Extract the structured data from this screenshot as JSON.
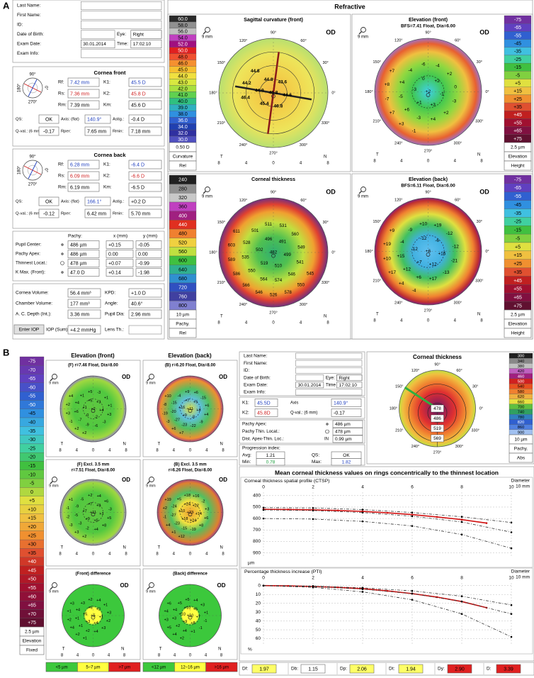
{
  "panel_a": {
    "label": "A",
    "patient": {
      "fields": [
        "Last Name:",
        "First Name:",
        "ID:",
        "Date of Birth:",
        "Exam Date:",
        "Exam Info:"
      ],
      "eye_label": "Eye:",
      "eye": "Right",
      "exam_date": "30.01.2014",
      "time_label": "Time:",
      "time": "17:02:10"
    },
    "orientation": [
      "90°",
      "0°",
      "270°",
      "180°"
    ],
    "cornea_front": {
      "title": "Cornea front",
      "rows": [
        [
          "Rf:",
          "7.42 mm",
          "K1:",
          "45.5 D"
        ],
        [
          "Rs:",
          "7.36 mm",
          "K2:",
          "45.8 D"
        ],
        [
          "Rm:",
          "7.39 mm",
          "Km:",
          "45.6 D"
        ]
      ],
      "rows6": [
        [
          "QS:",
          "OK",
          "Axis: (flat)",
          "140.9°",
          "Astig.:",
          "-0.4 D"
        ],
        [
          "Q-val.: (6 mm)",
          "-0.17",
          "Rper:",
          "7.65 mm",
          "Rmin:",
          "7.18 mm"
        ]
      ]
    },
    "cornea_back": {
      "title": "Cornea back",
      "rows": [
        [
          "Rf:",
          "6.28 mm",
          "K1:",
          "-6.4 D"
        ],
        [
          "Rs:",
          "6.09 mm",
          "K2:",
          "-6.6 D"
        ],
        [
          "Rm:",
          "6.19 mm",
          "Km:",
          "-6.5 D"
        ]
      ],
      "rows6": [
        [
          "QS:",
          "OK",
          "Axis: (flat)",
          "166.1°",
          "Astig.:",
          "+0.2 D"
        ],
        [
          "Q-val.: (6 mm)",
          "-0.12",
          "Rper:",
          "6.42 mm",
          "Rmin:",
          "5.70 mm"
        ]
      ]
    },
    "pachy": {
      "headers": [
        "Pachy:",
        "x (mm)",
        "y (mm)"
      ],
      "rows": [
        [
          "Pupil Center:",
          "486 µm",
          "+0.15",
          "-0.05"
        ],
        [
          "Pachy Apex:",
          "486 µm",
          "0.00",
          "0.00"
        ],
        [
          "Thinnest Locat.:",
          "478 µm",
          "+0.07",
          "-0.99"
        ],
        [
          "K Max. (Front):",
          "47.0 D",
          "+0.14",
          "-1.98"
        ]
      ]
    },
    "volumes": {
      "rows": [
        [
          "Cornea Volume:",
          "56.4 mm³",
          "KPD:",
          "+1.0 D"
        ],
        [
          "Chamber Volume:",
          "177 mm³",
          "Angle:",
          "40.6°"
        ],
        [
          "A. C. Depth (Int.):",
          "3.36 mm",
          "Pupil Dia:",
          "2.96 mm"
        ]
      ],
      "button": "Enter IOP",
      "iop_label": "IOP (Sum):",
      "iop": "+4.2 mmHg",
      "lens_label": "Lens Th.:"
    },
    "refractive": {
      "title": "Refractive",
      "angles": [
        "90°",
        "60°",
        "30°",
        "0°",
        "330°",
        "300°",
        "270°",
        "240°",
        "210°",
        "180°",
        "150°",
        "120°"
      ],
      "xticks": [
        "8",
        "4",
        "0",
        "4",
        "8"
      ],
      "t": "T",
      "n": "N",
      "zoom": "9 mm",
      "eye": "OD",
      "maps": [
        {
          "title": "Sagittal curvature (front)",
          "numbers": [
            "45.8",
            "44.8",
            "44.9",
            "45.4",
            "46.8",
            "44.6",
            "43.6",
            "44.8",
            "44.2",
            "46.4"
          ],
          "scale": {
            "values": [
              "60.0",
              "58.0",
              "56.0",
              "54.0",
              "52.0",
              "50.0",
              "48.0",
              "46.0",
              "45.0",
              "44.0",
              "43.0",
              "42.0",
              "41.0",
              "40.0",
              "39.0",
              "38.0",
              "36.0",
              "34.0",
              "32.0",
              "30.0"
            ],
            "labels": [
              "0.50 D",
              "Curvature",
              "Rel"
            ]
          }
        },
        {
          "title": "Elevation (front)",
          "subtitle": [
            "BFS=7.41 Float, Dia=6.00"
          ],
          "numbers": [
            "+2",
            "0",
            "-3",
            "+1",
            "+3",
            "-1",
            "+2",
            "-4",
            "+4",
            "-5",
            "+6",
            "-3",
            "+4",
            "+2",
            "-3",
            "0",
            "+2",
            "-4",
            "-6",
            "+7",
            "+8",
            "-7",
            "+7",
            "+3",
            "-1"
          ],
          "scale": {
            "values": [
              "-75",
              "-65",
              "-55",
              "-45",
              "-35",
              "-25",
              "-15",
              "-5",
              "+5",
              "+15",
              "+25",
              "+35",
              "+45",
              "+55",
              "+65",
              "+75"
            ],
            "labels": [
              "2.5 µm",
              "Elevation",
              "Height"
            ]
          }
        },
        {
          "title": "Corneal thickness",
          "numbers": [
            "482",
            "496",
            "502",
            "519",
            "510",
            "499",
            "491",
            "501",
            "528",
            "535",
            "550",
            "564",
            "574",
            "546",
            "541",
            "549",
            "560",
            "531",
            "511",
            "611",
            "603",
            "589",
            "586",
            "566",
            "546",
            "526",
            "578",
            "550",
            "545"
          ],
          "scale": {
            "values": [
              "240",
              "280",
              "320",
              "360",
              "400",
              "440",
              "480",
              "520",
              "560",
              "600",
              "640",
              "680",
              "720",
              "760",
              "800"
            ],
            "labels": [
              "10 µm",
              "Pachy.",
              "Rel"
            ]
          }
        },
        {
          "title": "Elevation (back)",
          "subtitle": [
            "BFS=6.11 Float, Dia=6.00"
          ],
          "numbers": [
            "+6",
            "-12",
            "-12",
            "+7",
            "+12",
            "+16",
            "-6",
            "-9",
            "-4",
            "+15",
            "+12",
            "+6",
            "+17",
            "-13",
            "-21",
            "-12",
            "-12",
            "+19",
            "+10",
            "+9",
            "+19",
            "+10",
            "+17",
            "+4",
            "-4"
          ],
          "scale": {
            "values": [
              "-75",
              "-65",
              "-55",
              "-45",
              "-35",
              "-25",
              "-15",
              "-5",
              "+5",
              "+15",
              "+25",
              "+35",
              "+45",
              "+55",
              "+65",
              "+75"
            ],
            "labels": [
              "2.5 µm",
              "Elevation",
              "Height"
            ]
          }
        }
      ]
    }
  },
  "panel_b": {
    "label": "B",
    "scale": {
      "values": [
        "-75",
        "-70",
        "-65",
        "-60",
        "-55",
        "-50",
        "-45",
        "-40",
        "-35",
        "-30",
        "-25",
        "-20",
        "-15",
        "-10",
        "-5",
        "0",
        "+5",
        "+10",
        "+15",
        "+20",
        "+25",
        "+30",
        "+35",
        "+40",
        "+45",
        "+50",
        "+55",
        "+60",
        "+65",
        "+70",
        "+75"
      ],
      "labels": [
        "2.5 µm",
        "Elevation",
        "Fixed"
      ]
    },
    "columns": [
      "Elevation (front)",
      "Elevation (back)"
    ],
    "xticks": [
      "8",
      "4",
      "0",
      "4",
      "8"
    ],
    "t": "T",
    "n": "N",
    "zoom": "9 mm",
    "eye": "OD",
    "maps": [
      {
        "subtitle": [
          "(F) r=7.46 Float, Dia=8.00"
        ],
        "numbers": [
          "+2",
          "+5",
          "+1",
          "0",
          "-2",
          "+4",
          "+3",
          "+1",
          "+4",
          "+6",
          "-7",
          "-9",
          "-6",
          "-3",
          "+3",
          "+1",
          "+1",
          "-3",
          "+5",
          "+4",
          "+2",
          "+3",
          "-1",
          "+2",
          "+2"
        ]
      },
      {
        "subtitle": [
          "(B) r=6.20 Float, Dia=8.00"
        ],
        "numbers": [
          "+11",
          "+7",
          "+16",
          "+9",
          "-8",
          "+8",
          "+5",
          "-4",
          "-15",
          "-20",
          "-27",
          "-23",
          "-22",
          "-9",
          "+4",
          "+6",
          "-15",
          "+6",
          "+9",
          "+10",
          "-8",
          "-19",
          "-3",
          "+6",
          "+7"
        ]
      },
      {
        "subtitle": [
          "(F) Excl. 3.5 mm",
          "r=7.51 Float, Dia=8.00"
        ],
        "numbers": [
          "+11",
          "+7",
          "+7",
          "+9",
          "+5",
          "+1",
          "+8",
          "-5",
          "-9",
          "-5",
          "-3",
          "-2",
          "+4",
          "+8",
          "+5",
          "-3",
          "+6",
          "+4",
          "+2",
          "+1",
          "-1",
          "-2",
          "-3",
          "+3",
          "+2"
        ]
      },
      {
        "subtitle": [
          "(B) Excl. 3.5 mm",
          "r=6.26 Float, Dia=8.00"
        ],
        "numbers": [
          "+23",
          "+24",
          "+10",
          "+18",
          "+24",
          "+14",
          "+22",
          "+5",
          "-24",
          "-27",
          "-23",
          "-15",
          "-19",
          "+8",
          "+6",
          "+3",
          "-2",
          "+16",
          "+18",
          "+19",
          "+2",
          "-1",
          "+4",
          "+1",
          "+12"
        ]
      },
      {
        "subtitle": [
          "(Front) difference"
        ],
        "numbers": [
          "+5",
          "+6",
          "+5",
          "+3",
          "+4",
          "+1",
          "+2",
          "+3",
          "+4",
          "+1",
          "+1",
          "+2",
          "+4",
          "+3",
          "+2",
          "+3",
          "+1",
          "+4",
          "+2",
          "+3",
          "+1",
          "+2",
          "+4",
          "+2",
          "+1"
        ]
      },
      {
        "subtitle": [
          "(Back) difference"
        ],
        "numbers": [
          "+10",
          "+10",
          "+10",
          "+9",
          "+8",
          "+7",
          "+6",
          "+5",
          "+4",
          "+3",
          "+2",
          "+4",
          "+1",
          "-1",
          "-1",
          "+1",
          "+3",
          "+4",
          "+5",
          "+6",
          "+4",
          "+3",
          "+5",
          "+4",
          "+2"
        ]
      }
    ],
    "legends": [
      [
        {
          "label": "<5 µm",
          "color": "#3cc83c"
        },
        {
          "label": "5–7 µm",
          "color": "#ffff40"
        },
        {
          "label": ">7 µm",
          "color": "#e02020"
        }
      ],
      [
        {
          "label": "<12 µm",
          "color": "#3cc83c"
        },
        {
          "label": "12–16 µm",
          "color": "#ffff40"
        },
        {
          "label": ">16 µm",
          "color": "#e02020"
        }
      ]
    ],
    "patient": {
      "fields": [
        "Last Name:",
        "First Name:",
        "ID:",
        "Date of Birth:",
        "Exam Date:",
        "Exam Info:"
      ],
      "eye_label": "Eye:",
      "eye": "Right",
      "exam_date": "30.01.2014",
      "time_label": "Time",
      "time": "17:02:10"
    },
    "k": {
      "rows": [
        [
          "K1:",
          "45.5D",
          "Axis",
          "140.9°"
        ],
        [
          "K2:",
          "45.8D",
          "Q-val.: (6 mm)",
          "-0.17"
        ]
      ]
    },
    "pachy": {
      "rows": [
        [
          "Pachy Apex:",
          "486 µm"
        ],
        [
          "Pachy Thin. Locat.:",
          "478 µm"
        ],
        [
          "Dist. Apex-Thin. Loc.:",
          "0.99 µm",
          "IN"
        ]
      ]
    },
    "progression": {
      "title": "Progression index:",
      "avg_label": "Avg:",
      "avg": "1.21",
      "min_label": "Min:",
      "min": "0.78",
      "qs_label": "QS:",
      "qs": "OK",
      "max_label": "Max:",
      "max": "1.82"
    },
    "thickness": {
      "title": "Corneal thickness",
      "angles": [
        "90°",
        "60°",
        "30°",
        "0°",
        "330°",
        "300°",
        "270°",
        "240°",
        "210°",
        "180°",
        "150°",
        "120°"
      ],
      "numbers": [
        "478",
        "486",
        "519",
        "569"
      ],
      "scale": {
        "values": [
          "300",
          "340",
          "380",
          "420",
          "460",
          "500",
          "540",
          "580",
          "620",
          "660",
          "700",
          "740",
          "780",
          "820",
          "860",
          "900"
        ],
        "labels": [
          "10 µm",
          "Pachy.",
          "Abs"
        ]
      }
    },
    "graph": {
      "title": "Mean corneal thickness values on rings concentrically to the thinnest location",
      "x_label": "Diameter",
      "x_unit": "10 mm",
      "plots": [
        {
          "type": "line",
          "title": "Corneal thickness spatial profile (CTSP)",
          "unit": "µm",
          "xlim": [
            0,
            10
          ],
          "xticks": [
            0,
            2,
            4,
            6,
            8,
            10
          ],
          "ylim": [
            370,
            940
          ],
          "yticks": [
            400,
            500,
            600,
            700,
            800,
            900
          ],
          "inverted_y": true,
          "series": [
            {
              "color": "#d01010",
              "style": "solid",
              "x": [
                0,
                1,
                2,
                3,
                4,
                5,
                6,
                7,
                8,
                9
              ],
              "values": [
                520,
                521,
                524,
                530,
                538,
                550,
                566,
                586,
                610,
                640
              ]
            },
            {
              "color": "#333333",
              "style": "dashed",
              "x": [
                0,
                2,
                4,
                6,
                8,
                10
              ],
              "values": [
                505,
                508,
                522,
                548,
                585,
                635
              ]
            },
            {
              "color": "#333333",
              "style": "dashed",
              "x": [
                0,
                2,
                4,
                6,
                8,
                10
              ],
              "values": [
                525,
                530,
                548,
                580,
                630,
                720
              ]
            },
            {
              "color": "#333333",
              "style": "dashed",
              "x": [
                0,
                2,
                4,
                6,
                8,
                10
              ],
              "values": [
                600,
                605,
                625,
                665,
                740,
                860
              ]
            }
          ]
        },
        {
          "type": "line",
          "title": "Percentage thickness increase (PTI)",
          "unit": "%",
          "xlim": [
            0,
            10
          ],
          "xticks": [
            0,
            2,
            4,
            6,
            8,
            10
          ],
          "ylim": [
            -3,
            66
          ],
          "yticks": [
            0,
            10,
            20,
            30,
            40,
            50,
            60
          ],
          "inverted_y": true,
          "series": [
            {
              "color": "#d01010",
              "style": "solid",
              "x": [
                0,
                1,
                2,
                3,
                4,
                5,
                6,
                7,
                8,
                9
              ],
              "values": [
                0,
                0.3,
                1,
                2,
                3.5,
                6,
                9,
                13,
                18,
                25
              ]
            },
            {
              "color": "#333333",
              "style": "dashed",
              "x": [
                0,
                2,
                4,
                6,
                8,
                10
              ],
              "values": [
                0,
                0.5,
                2.5,
                6,
                12,
                22
              ]
            },
            {
              "color": "#333333",
              "style": "dashed",
              "x": [
                0,
                2,
                4,
                6,
                8,
                10
              ],
              "values": [
                0,
                1,
                4,
                9,
                18,
                32
              ]
            },
            {
              "color": "#333333",
              "style": "dashed",
              "x": [
                0,
                2,
                4,
                6,
                8,
                10
              ],
              "values": [
                0,
                2,
                7,
                16,
                32,
                58
              ]
            }
          ]
        }
      ]
    },
    "indices": [
      {
        "label": "Df:",
        "value": "1.97",
        "color": "#ffff66"
      },
      {
        "label": "Db:",
        "value": "1.15",
        "color": "#ffffff"
      },
      {
        "label": "Dp:",
        "value": "2.06",
        "color": "#ffff66"
      },
      {
        "label": "Dt:",
        "value": "1.94",
        "color": "#ffff66"
      },
      {
        "label": "Dy:",
        "value": "2.90",
        "color": "#e02020"
      },
      {
        "label": "D:",
        "value": "3.39",
        "color": "#e02020"
      }
    ]
  }
}
